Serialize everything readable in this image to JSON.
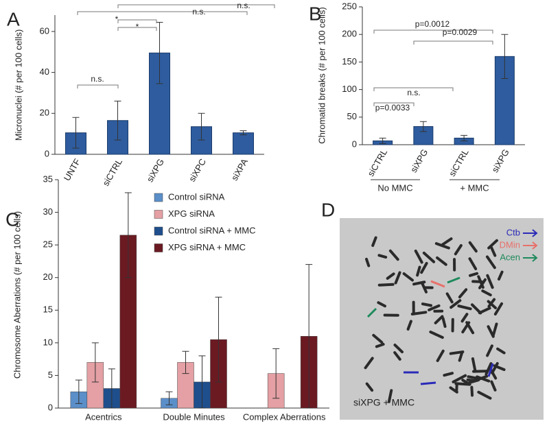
{
  "chart_data": [
    {
      "type": "bar",
      "panel_label": "A",
      "ylabel": "Micronuclei (# per 100 cells)",
      "categories": [
        "UNTF",
        "siCTRL",
        "siXPG",
        "siXPC",
        "siXPA"
      ],
      "values": [
        10.5,
        16.5,
        49.5,
        13.5,
        10.5
      ],
      "errors": [
        7.5,
        9.5,
        15,
        6.5,
        1
      ],
      "color": "#2e5c9e",
      "ylim": [
        0,
        68
      ],
      "yticks": [
        0,
        20,
        40,
        60
      ],
      "annotations": [
        "n.s.",
        "*",
        "*",
        "n.s.",
        "n.s."
      ]
    },
    {
      "type": "bar",
      "panel_label": "B",
      "ylabel": "Chromatid breaks (# per 100 cells)",
      "categories": [
        "siCTRL",
        "siXPG",
        "siCTRL",
        "siXPG"
      ],
      "values": [
        7,
        33,
        12,
        160
      ],
      "errors": [
        5,
        9,
        5,
        40
      ],
      "color": "#2e5c9e",
      "ylim": [
        0,
        250
      ],
      "yticks": [
        0,
        50,
        100,
        150,
        200,
        250
      ],
      "groups": [
        "No MMC",
        "+ MMC"
      ],
      "annotations": [
        "n.s.",
        "p=0.0033",
        "p=0.0012",
        "p=0.0029"
      ]
    },
    {
      "type": "grouped-bar",
      "panel_label": "C",
      "ylabel": "Chromosome Aberrations (# per 100 cells)",
      "categories": [
        "Acentrics",
        "Double Minutes",
        "Complex Aberrations"
      ],
      "series": [
        {
          "name": "Control siRNA",
          "color": "#5b8fc9",
          "values": [
            2.5,
            1.5,
            0
          ],
          "errors": [
            1.8,
            1,
            null
          ]
        },
        {
          "name": "XPG siRNA",
          "color": "#e4a0a4",
          "values": [
            7,
            7,
            5.3
          ],
          "errors": [
            3,
            1.7,
            3.8
          ]
        },
        {
          "name": "Control siRNA + MMC",
          "color": "#1f4e8c",
          "values": [
            3,
            4,
            0
          ],
          "errors": [
            3,
            4,
            null
          ]
        },
        {
          "name": "XPG siRNA + MMC",
          "color": "#6b1a22",
          "values": [
            26.5,
            10.5,
            11
          ],
          "errors": [
            6.5,
            6.5,
            11
          ]
        }
      ],
      "ylim": [
        0,
        35
      ],
      "yticks": [
        0,
        5,
        10,
        15,
        20,
        25,
        30,
        35
      ]
    }
  ],
  "panel_d": {
    "label": "D",
    "legend": [
      "Ctb",
      "DMin",
      "Acen"
    ],
    "caption": "siXPG + MMC"
  }
}
